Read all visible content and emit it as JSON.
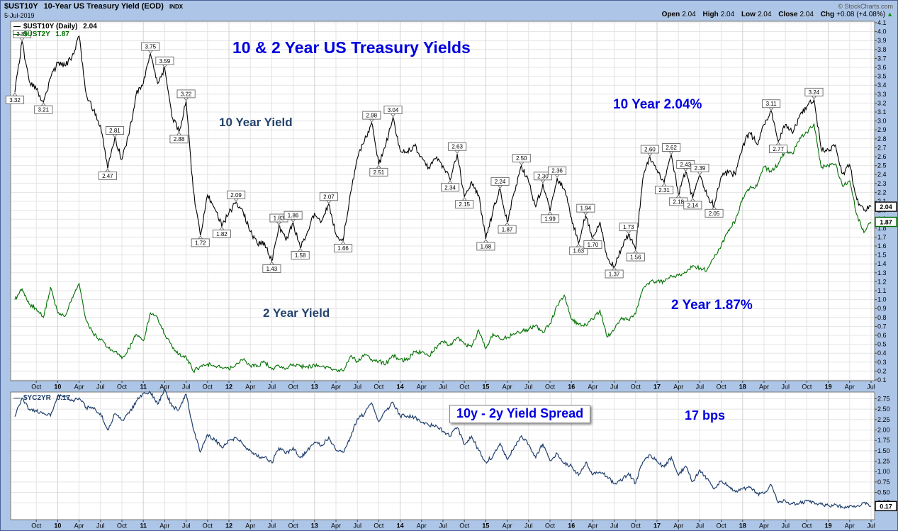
{
  "header": {
    "symbol": "$UST10Y",
    "title": "10-Year US Treasury Yield (EOD)",
    "exchange": "INDX",
    "date": "5-Jul-2019",
    "copyright": "© StockCharts.com",
    "quote": {
      "open_label": "Open",
      "open": "2.04",
      "high_label": "High",
      "high": "2.04",
      "low_label": "Low",
      "low": "2.04",
      "close_label": "Close",
      "close": "2.04",
      "chg_label": "Chg",
      "chg": "+0.08 (+4.08%)",
      "chg_arrow": "▲"
    }
  },
  "main_panel": {
    "legend": [
      {
        "swatch": "—",
        "label": "$UST10Y (Daily)",
        "value": "2.04"
      },
      {
        "swatch": "—",
        "label": "$UST2Y",
        "value": "1.87"
      }
    ],
    "annotations": {
      "title": "10 & 2 Year US Treasury Yields",
      "ten_year_line_label": "10 Year Yield",
      "two_year_line_label": "2 Year Yield",
      "ten_year_last": "10 Year 2.04%",
      "two_year_last": "2 Year 1.87%"
    }
  },
  "spread_panel": {
    "legend": {
      "swatch": "—",
      "label": "$YC2YR",
      "value": "0.17"
    },
    "annotations": {
      "spread_label": "10y - 2y Yield Spread",
      "bps_label": "17 bps"
    }
  },
  "chart_data": [
    {
      "type": "line",
      "title": "10 & 2 Year US Treasury Yields",
      "x_start": "Jul-2009",
      "x_end": "Jul-2019",
      "interval": "monthly",
      "grid": true,
      "legend_position": "top-left",
      "ylim": [
        0.1,
        4.1
      ],
      "y_tick_step": 0.1,
      "x_tick_labels": [
        "Oct",
        "10",
        "Apr",
        "Jul",
        "Oct",
        "11",
        "Apr",
        "Jul",
        "Oct",
        "12",
        "Apr",
        "Jul",
        "Oct",
        "13",
        "Apr",
        "Jul",
        "Oct",
        "14",
        "Apr",
        "Jul",
        "Oct",
        "15",
        "Apr",
        "Jul",
        "Oct",
        "16",
        "Apr",
        "Jul",
        "Oct",
        "17",
        "Apr",
        "Jul",
        "Oct",
        "18",
        "Apr",
        "Jul",
        "Oct",
        "19",
        "Apr",
        "Jul"
      ],
      "series": [
        {
          "name": "$UST10Y (Daily)",
          "last": 2.04,
          "color": "#000000",
          "values": [
            3.32,
            3.89,
            3.45,
            3.35,
            3.21,
            3.48,
            3.65,
            3.62,
            3.72,
            3.95,
            3.3,
            3.12,
            2.95,
            2.47,
            2.81,
            2.57,
            2.85,
            3.3,
            3.42,
            3.75,
            3.42,
            3.59,
            3.05,
            2.88,
            3.22,
            2.22,
            1.72,
            2.17,
            2.02,
            1.82,
            1.97,
            2.09,
            1.98,
            1.76,
            1.62,
            1.64,
            1.43,
            1.83,
            1.66,
            1.86,
            1.58,
            1.76,
            1.97,
            1.88,
            2.07,
            1.73,
            1.66,
            2.18,
            2.58,
            2.78,
            2.98,
            2.51,
            2.74,
            3.04,
            2.67,
            2.66,
            2.72,
            2.6,
            2.48,
            2.58,
            2.5,
            2.34,
            2.63,
            2.15,
            2.32,
            2.17,
            1.68,
            1.99,
            2.24,
            1.87,
            2.21,
            2.5,
            2.32,
            2.04,
            2.3,
            1.99,
            2.36,
            2.24,
            1.92,
            1.63,
            1.94,
            1.7,
            1.87,
            1.47,
            1.37,
            1.58,
            1.73,
            1.56,
            2.35,
            2.6,
            2.45,
            2.31,
            2.62,
            2.18,
            2.43,
            2.14,
            2.39,
            2.16,
            2.05,
            2.38,
            2.42,
            2.4,
            2.72,
            2.87,
            2.74,
            2.96,
            3.11,
            2.77,
            2.96,
            2.86,
            3.06,
            3.16,
            3.24,
            2.69,
            2.68,
            2.73,
            2.41,
            2.51,
            2.12,
            2.0,
            2.04
          ]
        },
        {
          "name": "$UST2Y",
          "last": 1.87,
          "color": "#007000",
          "values": [
            1.0,
            1.12,
            0.95,
            0.9,
            0.8,
            1.14,
            0.85,
            0.81,
            1.02,
            1.18,
            0.76,
            0.61,
            0.55,
            0.47,
            0.42,
            0.34,
            0.45,
            0.61,
            0.54,
            0.85,
            0.8,
            0.61,
            0.48,
            0.39,
            0.36,
            0.2,
            0.25,
            0.28,
            0.25,
            0.24,
            0.22,
            0.28,
            0.33,
            0.26,
            0.26,
            0.3,
            0.22,
            0.26,
            0.23,
            0.28,
            0.25,
            0.25,
            0.26,
            0.25,
            0.24,
            0.22,
            0.2,
            0.36,
            0.31,
            0.39,
            0.33,
            0.31,
            0.28,
            0.38,
            0.33,
            0.32,
            0.42,
            0.41,
            0.37,
            0.46,
            0.53,
            0.49,
            0.57,
            0.5,
            0.47,
            0.66,
            0.45,
            0.62,
            0.56,
            0.58,
            0.61,
            0.64,
            0.67,
            0.71,
            0.63,
            0.73,
            0.93,
            1.05,
            0.78,
            0.72,
            0.72,
            0.78,
            0.88,
            0.58,
            0.66,
            0.8,
            0.77,
            0.84,
            1.12,
            1.2,
            1.21,
            1.2,
            1.27,
            1.27,
            1.3,
            1.38,
            1.35,
            1.33,
            1.47,
            1.6,
            1.78,
            1.89,
            2.14,
            2.25,
            2.27,
            2.49,
            2.43,
            2.52,
            2.67,
            2.63,
            2.81,
            2.87,
            2.97,
            2.48,
            2.5,
            2.52,
            2.27,
            2.33,
            1.95,
            1.75,
            1.87
          ]
        }
      ],
      "callouts": [
        {
          "t": "3.32",
          "m": 0,
          "v": 3.32,
          "s": "b"
        },
        {
          "t": "3.89",
          "m": 1,
          "v": 3.89,
          "s": "a"
        },
        {
          "t": "3.21",
          "m": 4,
          "v": 3.21,
          "s": "b"
        },
        {
          "t": "2.47",
          "m": 13,
          "v": 2.47,
          "s": "b"
        },
        {
          "t": "2.81",
          "m": 14,
          "v": 2.81,
          "s": "a"
        },
        {
          "t": "3.75",
          "m": 19,
          "v": 3.75,
          "s": "a"
        },
        {
          "t": "3.59",
          "m": 21,
          "v": 3.59,
          "s": "a"
        },
        {
          "t": "2.88",
          "m": 23,
          "v": 2.88,
          "s": "b"
        },
        {
          "t": "3.22",
          "m": 24,
          "v": 3.22,
          "s": "a"
        },
        {
          "t": "1.72",
          "m": 26,
          "v": 1.72,
          "s": "b"
        },
        {
          "t": "1.82",
          "m": 29,
          "v": 1.82,
          "s": "b"
        },
        {
          "t": "2.09",
          "m": 31,
          "v": 2.09,
          "s": "a"
        },
        {
          "t": "1.43",
          "m": 36,
          "v": 1.43,
          "s": "b"
        },
        {
          "t": "1.83",
          "m": 37,
          "v": 1.83,
          "s": "a"
        },
        {
          "t": "1.86",
          "m": 39,
          "v": 1.86,
          "s": "a"
        },
        {
          "t": "1.58",
          "m": 40,
          "v": 1.58,
          "s": "b"
        },
        {
          "t": "2.07",
          "m": 44,
          "v": 2.07,
          "s": "a"
        },
        {
          "t": "1.66",
          "m": 46,
          "v": 1.66,
          "s": "b"
        },
        {
          "t": "2.98",
          "m": 50,
          "v": 2.98,
          "s": "a"
        },
        {
          "t": "2.51",
          "m": 51,
          "v": 2.51,
          "s": "b"
        },
        {
          "t": "3.04",
          "m": 53,
          "v": 3.04,
          "s": "a"
        },
        {
          "t": "2.34",
          "m": 61,
          "v": 2.34,
          "s": "b"
        },
        {
          "t": "2.63",
          "m": 62,
          "v": 2.63,
          "s": "a"
        },
        {
          "t": "2.15",
          "m": 63,
          "v": 2.15,
          "s": "b"
        },
        {
          "t": "1.68",
          "m": 66,
          "v": 1.68,
          "s": "b"
        },
        {
          "t": "2.24",
          "m": 68,
          "v": 2.24,
          "s": "a"
        },
        {
          "t": "1.87",
          "m": 69,
          "v": 1.87,
          "s": "b"
        },
        {
          "t": "2.50",
          "m": 71,
          "v": 2.5,
          "s": "a"
        },
        {
          "t": "2.30",
          "m": 74,
          "v": 2.3,
          "s": "a"
        },
        {
          "t": "1.99",
          "m": 75,
          "v": 1.99,
          "s": "b"
        },
        {
          "t": "2.36",
          "m": 76,
          "v": 2.36,
          "s": "a"
        },
        {
          "t": "1.63",
          "m": 79,
          "v": 1.63,
          "s": "b"
        },
        {
          "t": "1.94",
          "m": 80,
          "v": 1.94,
          "s": "a"
        },
        {
          "t": "1.70",
          "m": 81,
          "v": 1.7,
          "s": "b"
        },
        {
          "t": "1.37",
          "m": 84,
          "v": 1.37,
          "s": "b"
        },
        {
          "t": "1.73",
          "m": 86,
          "v": 1.73,
          "s": "a"
        },
        {
          "t": "1.56",
          "m": 87,
          "v": 1.56,
          "s": "b"
        },
        {
          "t": "2.60",
          "m": 89,
          "v": 2.6,
          "s": "a"
        },
        {
          "t": "2.31",
          "m": 91,
          "v": 2.31,
          "s": "b"
        },
        {
          "t": "2.62",
          "m": 92,
          "v": 2.62,
          "s": "a"
        },
        {
          "t": "2.18",
          "m": 93,
          "v": 2.18,
          "s": "b"
        },
        {
          "t": "2.43",
          "m": 94,
          "v": 2.43,
          "s": "a"
        },
        {
          "t": "2.14",
          "m": 95,
          "v": 2.14,
          "s": "b"
        },
        {
          "t": "2.39",
          "m": 96,
          "v": 2.39,
          "s": "a"
        },
        {
          "t": "2.05",
          "m": 98,
          "v": 2.05,
          "s": "b"
        },
        {
          "t": "3.11",
          "m": 106,
          "v": 3.11,
          "s": "a"
        },
        {
          "t": "2.77",
          "m": 107,
          "v": 2.77,
          "s": "b"
        },
        {
          "t": "3.24",
          "m": 112,
          "v": 3.24,
          "s": "a"
        }
      ]
    },
    {
      "type": "line",
      "title": "10y - 2y Yield Spread",
      "ylim": [
        0.25,
        2.75
      ],
      "y_tick_step": 0.25,
      "grid": true,
      "series": [
        {
          "name": "$YC2YR",
          "last": 0.17,
          "color": "#20406e",
          "derived": "10-year yield minus 2-year yield (computed from panel 1 series)"
        }
      ]
    }
  ]
}
